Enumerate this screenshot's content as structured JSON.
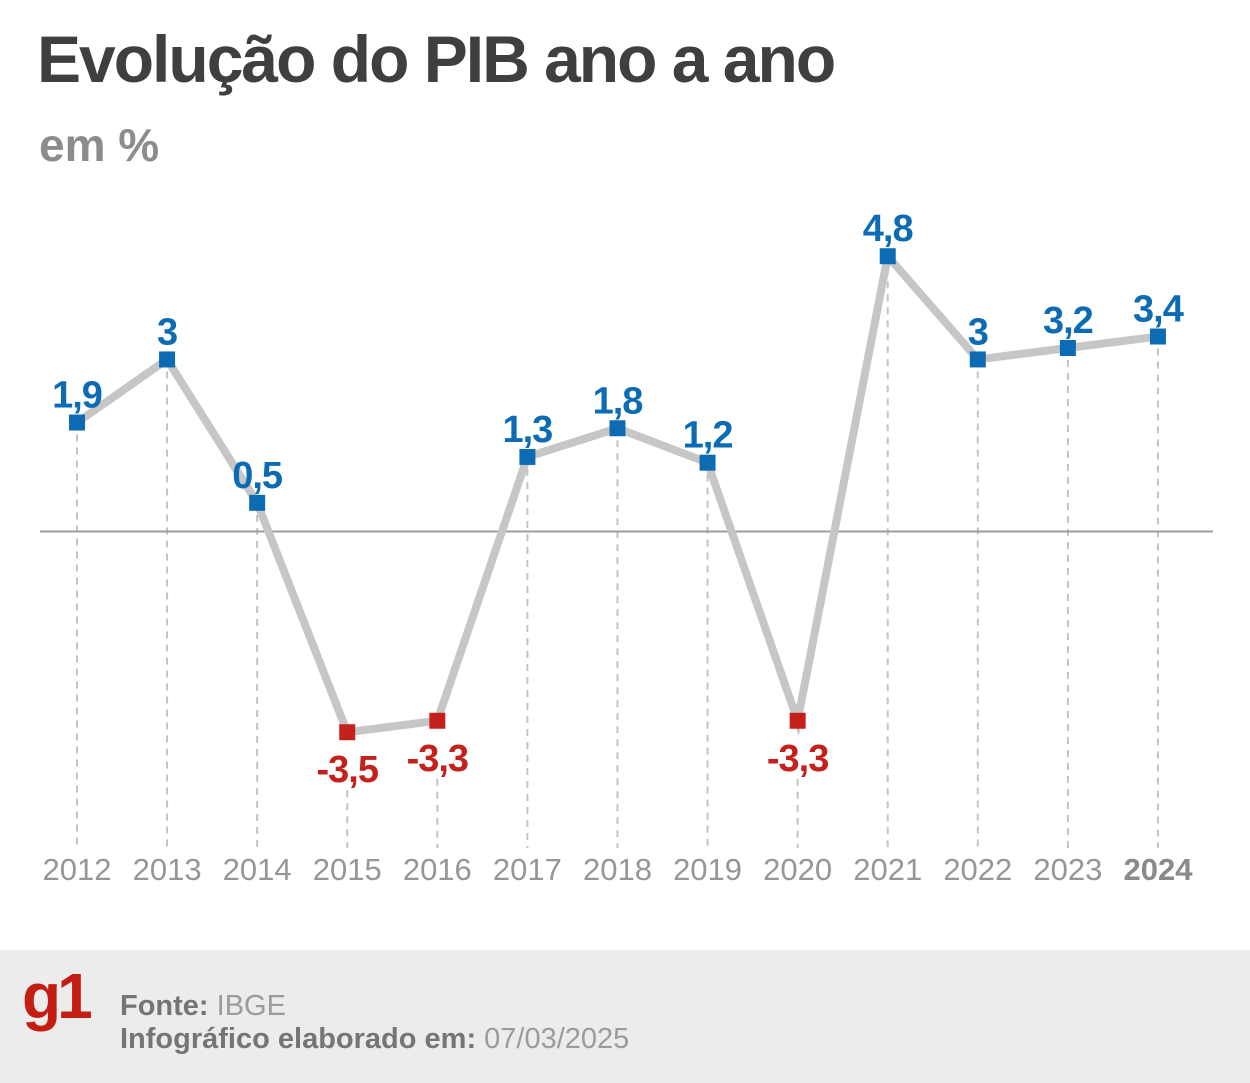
{
  "header": {
    "title": "Evolução do PIB ano a ano",
    "subtitle": "em %"
  },
  "chart_data": {
    "type": "line",
    "title": "Evolução do PIB ano a ano",
    "unit": "%",
    "categories": [
      "2012",
      "2013",
      "2014",
      "2015",
      "2016",
      "2017",
      "2018",
      "2019",
      "2020",
      "2021",
      "2022",
      "2023",
      "2024"
    ],
    "values": [
      1.9,
      3,
      0.5,
      -3.5,
      -3.3,
      1.3,
      1.8,
      1.2,
      -3.3,
      4.8,
      3,
      3.2,
      3.4
    ],
    "labels": [
      "1,9",
      "3",
      "0,5",
      "-3,5",
      "-3,3",
      "1,3",
      "1,8",
      "1,2",
      "-3,3",
      "4,8",
      "3",
      "3,2",
      "3,4"
    ],
    "baseline_value": 0,
    "ylim": [
      -4.2,
      5.6
    ],
    "grid": "dashed-vertical-per-point",
    "legend": "none",
    "emphasized_category": "2024",
    "positive_color": "#0c6bb3",
    "negative_color": "#c5211c",
    "line_color": "#c6c6c6",
    "grid_color": "#c3c3c3",
    "axis_color": "#9c9c9c",
    "year_label_color": "#969696"
  },
  "footer": {
    "logo": "g1",
    "source_label": "Fonte:",
    "source_value": " IBGE",
    "date_label": "Infográfico elaborado em:",
    "date_value": " 07/03/2025"
  }
}
